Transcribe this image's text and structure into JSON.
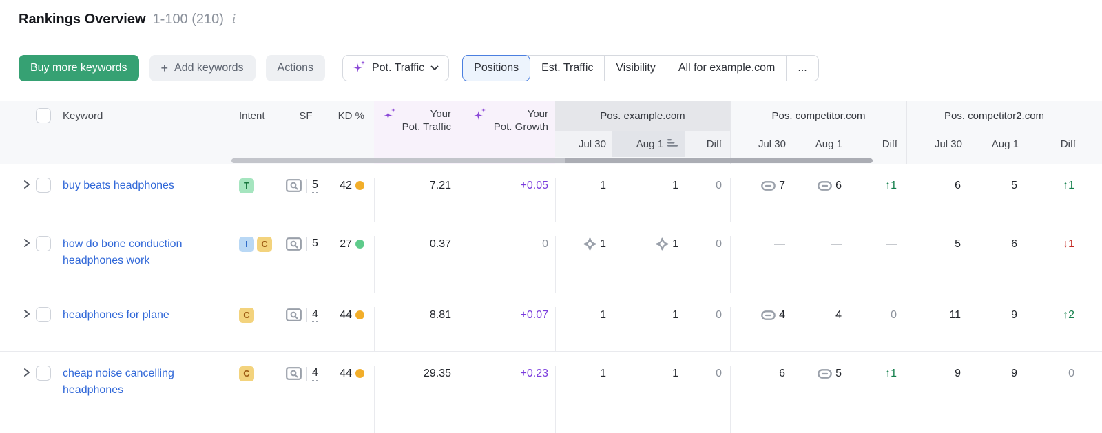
{
  "page": {
    "title": "Rankings Overview",
    "range": "1-100 (210)",
    "info_icon": "i"
  },
  "toolbar": {
    "buy": "Buy more keywords",
    "add_plus": "+",
    "add": "Add keywords",
    "actions": "Actions",
    "metric": "Pot. Traffic",
    "tabs": [
      "Positions",
      "Est. Traffic",
      "Visibility",
      "All for example.com",
      "..."
    ],
    "active_tab": "Positions"
  },
  "table": {
    "header": {
      "keyword": "Keyword",
      "intent": "Intent",
      "sf": "SF",
      "kd": "KD %",
      "pot_traffic": {
        "line1": "Your",
        "line2": "Pot. Traffic"
      },
      "pot_growth": {
        "line1": "Your",
        "line2": "Pot. Growth"
      },
      "groups": [
        {
          "label": "Pos. example.com",
          "cols": [
            "Jul 30",
            "Aug 1",
            "Diff"
          ],
          "sorted_col": "Aug 1"
        },
        {
          "label": "Pos. competitor.com",
          "cols": [
            "Jul 30",
            "Aug 1",
            "Diff"
          ]
        },
        {
          "label": "Pos. competitor2.com",
          "cols": [
            "Jul 30",
            "Aug 1",
            "Diff"
          ]
        }
      ]
    },
    "rows": [
      {
        "keyword": "buy beats headphones",
        "intents": [
          {
            "label": "T",
            "type": "transactional"
          }
        ],
        "sf": "5",
        "kd": "42",
        "kd_level": "medium",
        "pot_traffic": "7.21",
        "pot_growth": {
          "text": "+0.05",
          "highlight": true
        },
        "example": [
          {
            "text": "1"
          },
          {
            "text": "1"
          },
          {
            "text": "0",
            "muted": true
          }
        ],
        "competitor": [
          {
            "text": "7",
            "icon": "link"
          },
          {
            "text": "6",
            "icon": "link"
          },
          {
            "text": "1",
            "dir": "up"
          }
        ],
        "competitor2": [
          {
            "text": "6"
          },
          {
            "text": "5"
          },
          {
            "text": "1",
            "dir": "up"
          }
        ]
      },
      {
        "keyword": "how do bone conduction headphones work",
        "intents": [
          {
            "label": "I",
            "type": "informational"
          },
          {
            "label": "C",
            "type": "commercial"
          }
        ],
        "sf": "5",
        "kd": "27",
        "kd_level": "easy",
        "pot_traffic": "0.37",
        "pot_growth": {
          "text": "0",
          "muted": true
        },
        "example": [
          {
            "text": "1",
            "icon": "diamond"
          },
          {
            "text": "1",
            "icon": "diamond"
          },
          {
            "text": "0",
            "muted": true
          }
        ],
        "competitor": [
          {
            "text": "—",
            "muted": true
          },
          {
            "text": "—",
            "muted": true
          },
          {
            "text": "—",
            "muted": true
          }
        ],
        "competitor2": [
          {
            "text": "5"
          },
          {
            "text": "6"
          },
          {
            "text": "1",
            "dir": "down"
          }
        ]
      },
      {
        "keyword": "headphones for plane",
        "intents": [
          {
            "label": "C",
            "type": "commercial"
          }
        ],
        "sf": "4",
        "kd": "44",
        "kd_level": "medium",
        "pot_traffic": "8.81",
        "pot_growth": {
          "text": "+0.07",
          "highlight": true
        },
        "example": [
          {
            "text": "1"
          },
          {
            "text": "1"
          },
          {
            "text": "0",
            "muted": true
          }
        ],
        "competitor": [
          {
            "text": "4",
            "icon": "link"
          },
          {
            "text": "4"
          },
          {
            "text": "0",
            "muted": true
          }
        ],
        "competitor2": [
          {
            "text": "11"
          },
          {
            "text": "9"
          },
          {
            "text": "2",
            "dir": "up"
          }
        ]
      },
      {
        "keyword": "cheap noise cancelling headphones",
        "intents": [
          {
            "label": "C",
            "type": "commercial"
          }
        ],
        "sf": "4",
        "kd": "44",
        "kd_level": "medium",
        "pot_traffic": "29.35",
        "pot_growth": {
          "text": "+0.23",
          "highlight": true
        },
        "example": [
          {
            "text": "1"
          },
          {
            "text": "1"
          },
          {
            "text": "0",
            "muted": true
          }
        ],
        "competitor": [
          {
            "text": "6"
          },
          {
            "text": "5",
            "icon": "link"
          },
          {
            "text": "1",
            "dir": "up"
          }
        ],
        "competitor2": [
          {
            "text": "9"
          },
          {
            "text": "9"
          },
          {
            "text": "0",
            "muted": true
          }
        ]
      }
    ]
  },
  "colors": {
    "accent_green": "#36a173",
    "link_blue": "#3168d8",
    "active_tab_border": "#4b7fe0",
    "sparkle_purple": "#8b49d7",
    "growth_purple": "#7a3bdd",
    "diff_up": "#15804d",
    "diff_down": "#c32b24",
    "kd_medium": "#f2ae2a",
    "kd_easy": "#5ecb8b",
    "icon_gray": "#9aa0aa",
    "intent_transactional_bg": "#a5e5bf",
    "intent_transactional_fg": "#19773f",
    "intent_informational_bg": "#b9d8f5",
    "intent_informational_fg": "#1f5fc2",
    "intent_commercial_bg": "#f3d37d",
    "intent_commercial_fg": "#9c5a12"
  }
}
